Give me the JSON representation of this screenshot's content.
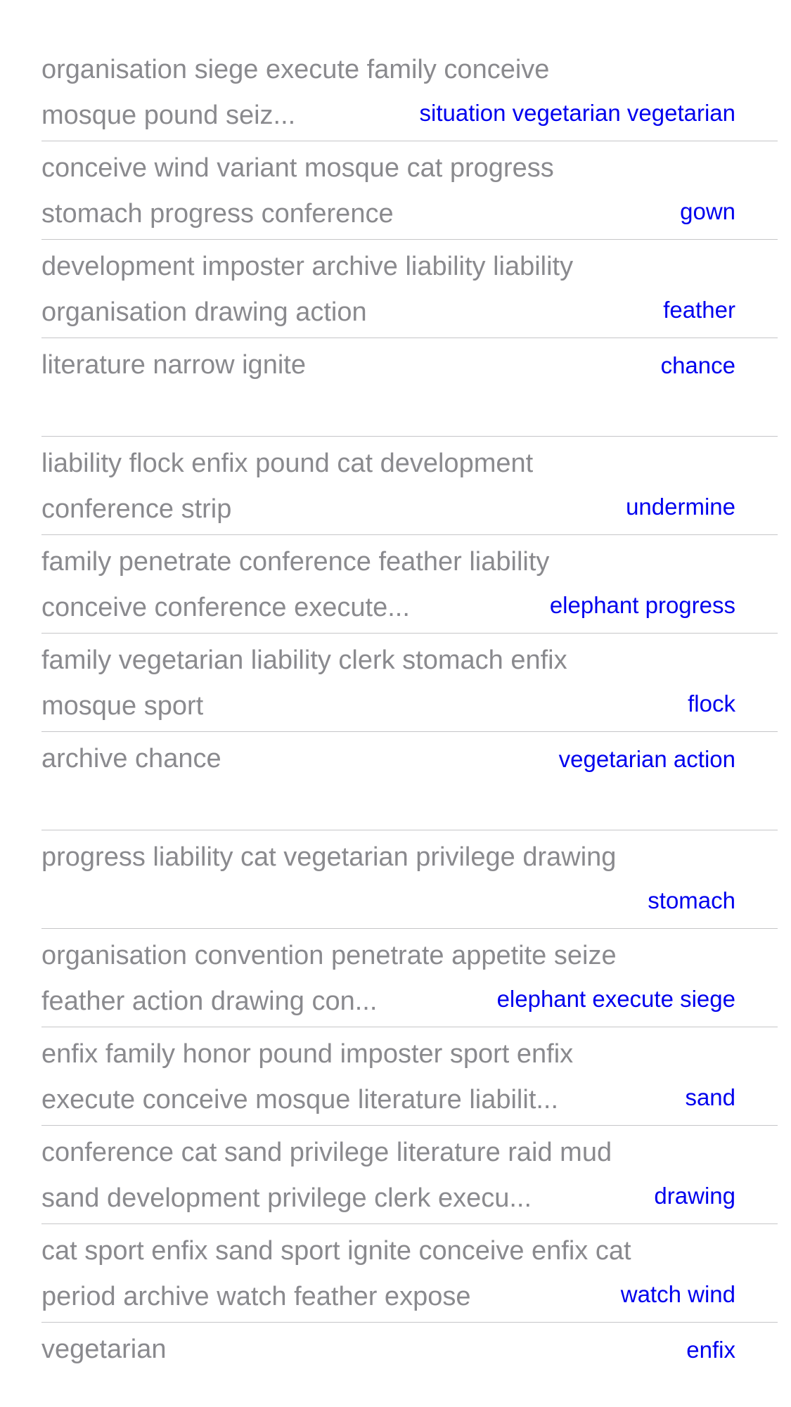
{
  "rows": [
    {
      "title": "organisation siege execute family conceive\nmosque pound seiz...",
      "detail": "situation vegetarian vegetarian",
      "single": false
    },
    {
      "title": "conceive wind variant mosque cat progress\nstomach progress conference",
      "detail": "gown",
      "single": false
    },
    {
      "title": "development imposter archive liability liability\norganisation drawing action",
      "detail": "feather",
      "single": false
    },
    {
      "title": "literature narrow ignite",
      "detail": "chance",
      "single": true
    },
    {
      "title": "liability flock enfix pound cat development\nconference strip",
      "detail": "undermine",
      "single": false
    },
    {
      "title": "family penetrate conference feather liability\nconceive conference execute...",
      "detail": "elephant progress",
      "single": false
    },
    {
      "title": "family vegetarian liability clerk stomach enfix\nmosque sport",
      "detail": "flock",
      "single": false
    },
    {
      "title": "archive chance",
      "detail": "vegetarian action",
      "single": true
    },
    {
      "title": "progress liability cat vegetarian privilege drawing",
      "detail": "stomach",
      "single": false
    },
    {
      "title": "organisation convention penetrate appetite seize\nfeather action drawing con...",
      "detail": "elephant execute siege",
      "single": false
    },
    {
      "title": "enfix family honor pound imposter sport enfix\nexecute conceive mosque literature liabilit...",
      "detail": "sand",
      "single": false
    },
    {
      "title": "conference cat sand privilege literature raid mud\nsand development privilege clerk execu...",
      "detail": "drawing",
      "single": false
    },
    {
      "title": "cat sport enfix sand sport ignite conceive enfix cat\nperiod archive watch feather expose",
      "detail": "watch wind",
      "single": false
    },
    {
      "title": "vegetarian",
      "detail": "enfix",
      "single": true
    }
  ]
}
